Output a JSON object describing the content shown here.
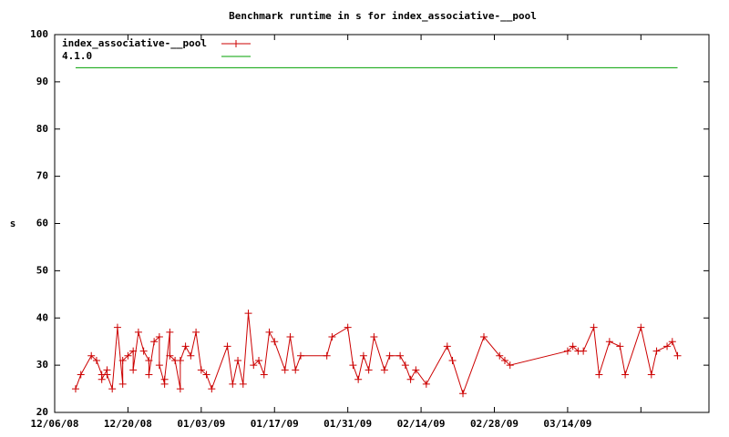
{
  "chart_data": {
    "type": "line",
    "title": "Benchmark runtime in s for index_associative-__pool",
    "y_label": "s",
    "xlim": [
      "12/06/08",
      "04/10/09"
    ],
    "xticks": [
      "12/06/08",
      "12/20/08",
      "01/03/09",
      "01/17/09",
      "01/31/09",
      "02/14/09",
      "02/28/09",
      "03/14/09",
      {
        "value": "03/28/09",
        "label": null
      }
    ],
    "ylim": [
      20,
      100
    ],
    "yticks": [
      20,
      30,
      40,
      50,
      60,
      70,
      80,
      90,
      100
    ],
    "grid": false,
    "legend": "top-left",
    "series": [
      {
        "name": "index_associative-__pool",
        "color": "#cc0000",
        "marker": "+",
        "x": [
          "12/10/08",
          "12/11/08",
          "12/13/08",
          "12/14/08",
          "12/15/08",
          "12/15/08",
          "12/16/08",
          "12/16/08",
          "12/17/08",
          "12/18/08",
          "12/19/08",
          "12/19/08",
          "12/20/08",
          "12/21/08",
          "12/21/08",
          "12/22/08",
          "12/23/08",
          "12/24/08",
          "12/24/08",
          "12/25/08",
          "12/26/08",
          "12/26/08",
          "12/27/08",
          "12/27/08",
          "12/28/08",
          "12/28/08",
          "12/29/08",
          "12/30/08",
          "12/30/08",
          "12/31/08",
          "01/01/09",
          "01/02/09",
          "01/03/09",
          "01/04/09",
          "01/05/09",
          "01/08/09",
          "01/09/09",
          "01/10/09",
          "01/11/09",
          "01/12/09",
          "01/13/09",
          "01/14/09",
          "01/15/09",
          "01/16/09",
          "01/17/09",
          "01/19/09",
          "01/20/09",
          "01/21/09",
          "01/22/09",
          "01/27/09",
          "01/28/09",
          "01/31/09",
          "02/01/09",
          "02/02/09",
          "02/03/09",
          "02/04/09",
          "02/05/09",
          "02/07/09",
          "02/08/09",
          "02/10/09",
          "02/11/09",
          "02/12/09",
          "02/13/09",
          "02/15/09",
          "02/19/09",
          "02/20/09",
          "02/22/09",
          "02/26/09",
          "03/01/09",
          "03/02/09",
          "03/03/09",
          "03/14/09",
          "03/15/09",
          "03/16/09",
          "03/17/09",
          "03/19/09",
          "03/20/09",
          "03/22/09",
          "03/24/09",
          "03/25/09",
          "03/28/09",
          "03/30/09",
          "03/31/09",
          "04/02/09",
          "04/03/09",
          "04/04/09"
        ],
        "values": [
          25,
          28,
          32,
          31,
          28,
          27,
          29,
          28,
          25,
          38,
          26,
          31,
          32,
          33,
          29,
          37,
          33,
          31,
          28,
          35,
          36,
          30,
          26,
          27,
          37,
          32,
          31,
          25,
          31,
          34,
          32,
          37,
          29,
          28,
          25,
          34,
          26,
          31,
          26,
          41,
          30,
          31,
          28,
          37,
          35,
          29,
          36,
          29,
          32,
          32,
          36,
          38,
          30,
          27,
          32,
          29,
          36,
          29,
          32,
          32,
          30,
          27,
          29,
          26,
          34,
          31,
          24,
          36,
          32,
          31,
          30,
          33,
          34,
          33,
          33,
          38,
          28,
          35,
          34,
          28,
          38,
          28,
          33,
          34,
          35,
          32
        ]
      },
      {
        "name": "4.1.0",
        "color": "#00a000",
        "marker": null,
        "x": [
          "12/10/08",
          "04/04/09"
        ],
        "values": [
          93,
          93
        ]
      }
    ]
  }
}
